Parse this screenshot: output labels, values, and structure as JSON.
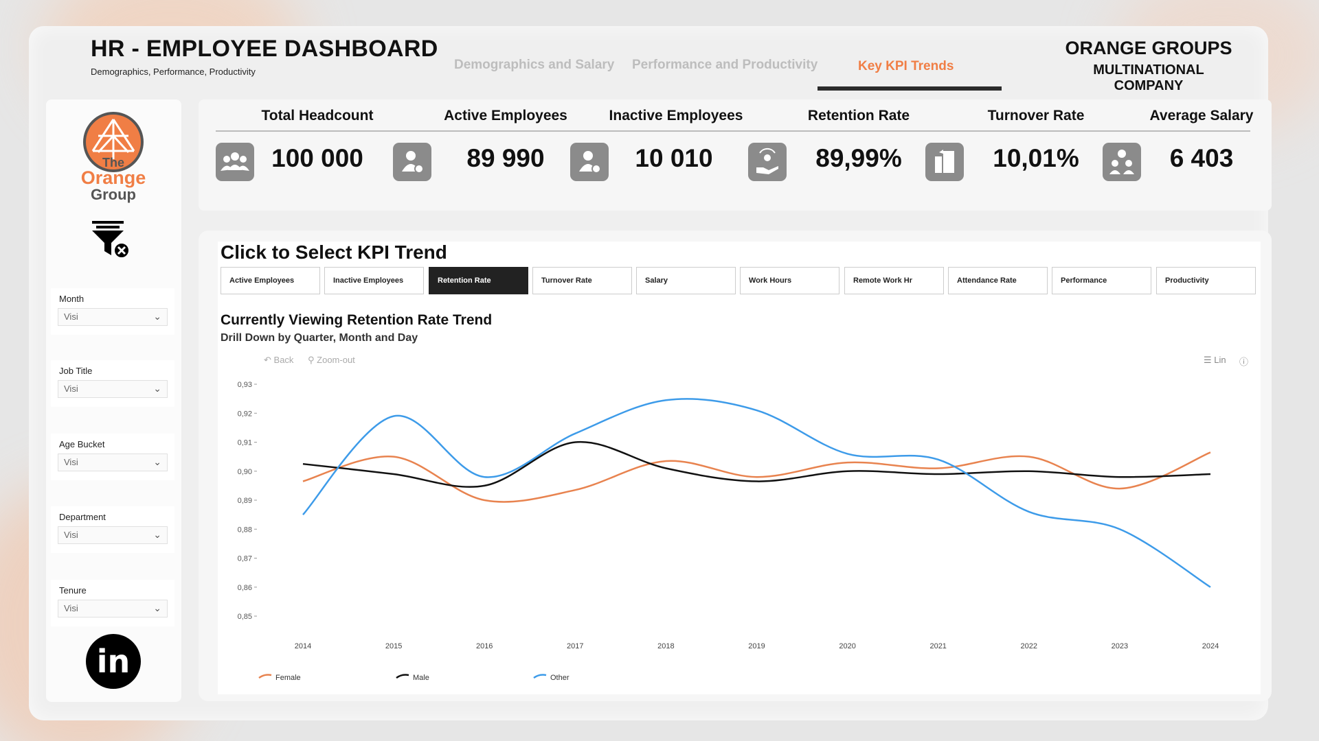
{
  "header": {
    "title": "HR - EMPLOYEE DASHBOARD",
    "subtitle": "Demographics, Performance, Productivity",
    "brand_line1": "ORANGE GROUPS",
    "brand_line2": "MULTINATIONAL COMPANY"
  },
  "nav": {
    "tabs": [
      {
        "label": "Demographics and Salary"
      },
      {
        "label": "Performance and Productivity"
      },
      {
        "label": "Key KPI Trends"
      }
    ],
    "active": "Key KPI Trends"
  },
  "logo": {
    "line1": "The",
    "line2": "Orange",
    "line3": "Group"
  },
  "slicers": [
    {
      "label": "Month",
      "value": "Visi"
    },
    {
      "label": "Job Title",
      "value": "Visi"
    },
    {
      "label": "Age Bucket",
      "value": "Visi"
    },
    {
      "label": "Department",
      "value": "Visi"
    },
    {
      "label": "Tenure",
      "value": "Visi"
    }
  ],
  "linkedin": {
    "label": "in"
  },
  "kpis": [
    {
      "title": "Total Headcount",
      "value": "100 000",
      "icon": "group-icon"
    },
    {
      "title": "Active Employees",
      "value": "89 990",
      "icon": "user-check-icon"
    },
    {
      "title": "Inactive Employees",
      "value": "10 010",
      "icon": "user-remove-icon"
    },
    {
      "title": "Retention Rate",
      "value": "89,99%",
      "icon": "hand-retain-icon"
    },
    {
      "title": "Turnover Rate",
      "value": "10,01%",
      "icon": "door-exit-icon"
    },
    {
      "title": "Average Salary",
      "value": "6 403",
      "icon": "salary-group-icon"
    }
  ],
  "kpi_selector": {
    "title": "Click to Select KPI Trend",
    "buttons": [
      "Active Employees",
      "Inactive Employees",
      "Retention Rate",
      "Turnover Rate",
      "Salary",
      "Work Hours",
      "Remote Work Hr",
      "Attendance Rate",
      "Performance",
      "Productivity"
    ],
    "active": "Retention Rate"
  },
  "chart_section": {
    "title": "Currently Viewing Retention Rate Trend",
    "subtitle": "Drill Down by Quarter, Month and Day",
    "toolbar": {
      "back": "Back",
      "zoom_out": "Zoom-out",
      "lin": "Lin"
    }
  },
  "colors": {
    "accent": "#f07e45",
    "female": "#e8834f",
    "male": "#111111",
    "other": "#3d9be9",
    "icon_bg": "#8b8b8b"
  },
  "chart_data": {
    "type": "line",
    "x": [
      2014,
      2015,
      2016,
      2017,
      2018,
      2019,
      2020,
      2021,
      2022,
      2023,
      2024
    ],
    "ylim": [
      0.85,
      0.93
    ],
    "yticks": [
      0.93,
      0.92,
      0.91,
      0.9,
      0.89,
      0.88,
      0.87,
      0.86,
      0.85
    ],
    "legend_position": "bottom-left",
    "series": [
      {
        "name": "Female",
        "values": [
          0.8965,
          0.905,
          0.89,
          0.8935,
          0.9035,
          0.898,
          0.903,
          0.901,
          0.905,
          0.894,
          0.9065
        ]
      },
      {
        "name": "Male",
        "values": [
          0.9025,
          0.899,
          0.895,
          0.91,
          0.901,
          0.8965,
          0.9,
          0.899,
          0.9,
          0.898,
          0.899
        ]
      },
      {
        "name": "Other",
        "values": [
          0.885,
          0.919,
          0.898,
          0.913,
          0.9245,
          0.921,
          0.906,
          0.904,
          0.886,
          0.88,
          0.86
        ]
      }
    ]
  }
}
